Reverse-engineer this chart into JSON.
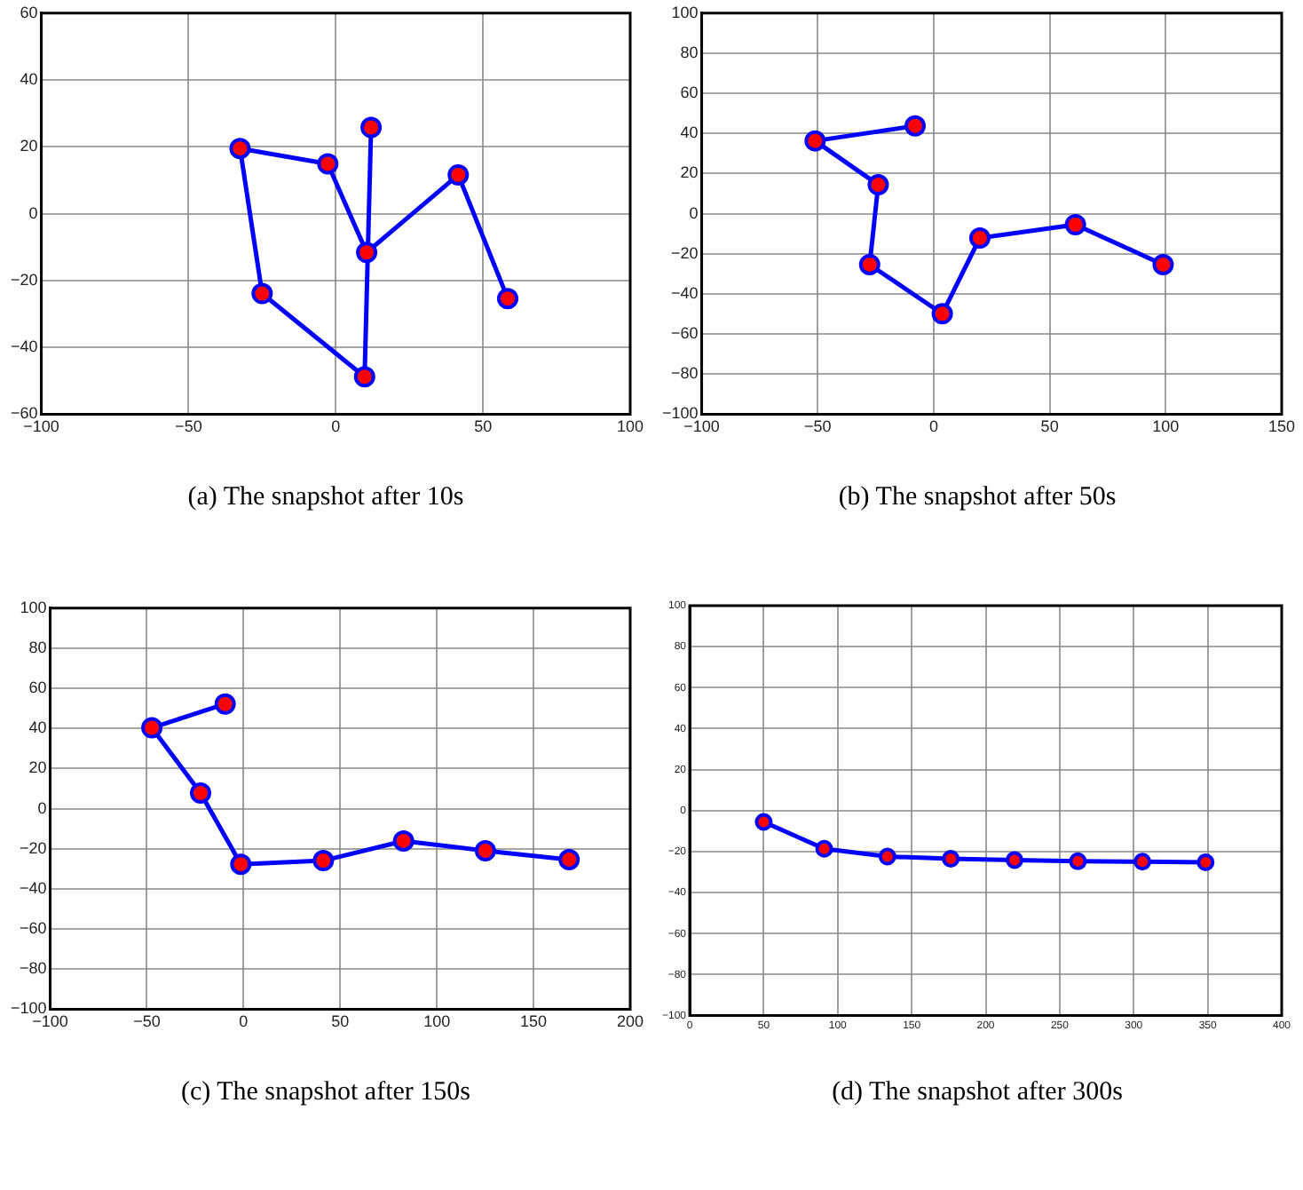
{
  "chart_data": [
    {
      "type": "line",
      "title": "(a) The snapshot after 10s",
      "x": [
        58.4,
        41.6,
        10.5,
        -2.7,
        -32.5,
        -25,
        9.8,
        12
      ],
      "series": [
        {
          "color": "#0000ff",
          "colors": [
            "#ff0000",
            "#ff0000",
            "#ff0000",
            "#ff0000",
            "#ff0000",
            "#ff0000",
            "#ff0000",
            "#ff0000"
          ],
          "values": [
            -25.4,
            11.6,
            -11.6,
            14.9,
            19.5,
            -23.9,
            -48.8,
            25.8
          ]
        }
      ],
      "xlim": [
        -100,
        100
      ],
      "xticks": [
        -100,
        -50,
        0,
        50,
        100
      ],
      "ylim": [
        -60,
        60
      ],
      "yticks": [
        -60,
        -40,
        -20,
        0,
        20,
        40,
        60
      ],
      "grid": true,
      "marker": "circle",
      "line_style": "solid"
    },
    {
      "type": "line",
      "title": "(b) The snapshot after 50s",
      "x": [
        -8,
        -51.1,
        -23.9,
        -27.6,
        3.7,
        19.9,
        61.1,
        98.9
      ],
      "series": [
        {
          "color": "#0000ff",
          "colors": [
            "#ff0000",
            "#ff0000",
            "#ff0000",
            "#ff0000",
            "#ff0000",
            "#ff0000",
            "#ff0000",
            "#ff0000"
          ],
          "values": [
            43.8,
            36.3,
            14.4,
            -25.4,
            -49.9,
            -12.1,
            -5.5,
            -25.4
          ]
        }
      ],
      "xlim": [
        -100,
        150
      ],
      "xticks": [
        -100,
        -50,
        0,
        50,
        100,
        150
      ],
      "ylim": [
        -100,
        100
      ],
      "yticks": [
        -100,
        -80,
        -60,
        -40,
        -20,
        0,
        20,
        40,
        60,
        80,
        100
      ],
      "grid": true,
      "marker": "circle",
      "line_style": "solid"
    },
    {
      "type": "line",
      "title": "(c) The snapshot after 150s",
      "x": [
        -9.5,
        -47.4,
        -22.2,
        -1.4,
        41.3,
        82.8,
        125.1,
        168.4
      ],
      "series": [
        {
          "color": "#0000ff",
          "colors": [
            "#ff0000",
            "#ff0000",
            "#ff0000",
            "#ff0000",
            "#ff0000",
            "#ff0000",
            "#ff0000",
            "#ff0000"
          ],
          "values": [
            52.2,
            40.3,
            7.8,
            -27.7,
            -25.9,
            -16.1,
            -21,
            -25.4
          ]
        }
      ],
      "xlim": [
        -100,
        200
      ],
      "xticks": [
        -100,
        -50,
        0,
        50,
        100,
        150,
        200
      ],
      "ylim": [
        -100,
        100
      ],
      "yticks": [
        -100,
        -80,
        -60,
        -40,
        -20,
        0,
        20,
        40,
        60,
        80,
        100
      ],
      "grid": true,
      "marker": "circle",
      "line_style": "solid"
    },
    {
      "type": "line",
      "title": "(d) The snapshot after 300s",
      "x": [
        50,
        90.9,
        133.6,
        176.4,
        219.5,
        262.3,
        305.9,
        348.6
      ],
      "series": [
        {
          "color": "#0000ff",
          "colors": [
            "#ff0000",
            "#ff0000",
            "#ff0000",
            "#ff0000",
            "#ff0000",
            "#ff0000",
            "#ff0000",
            "#ff0000"
          ],
          "values": [
            -5.5,
            -18.6,
            -22.4,
            -23.5,
            -24.1,
            -24.7,
            -24.9,
            -25.2
          ]
        }
      ],
      "xlim": [
        0,
        400
      ],
      "xticks": [
        0,
        50,
        100,
        150,
        200,
        250,
        300,
        350,
        400
      ],
      "ylim": [
        -100,
        100
      ],
      "yticks": [
        -100,
        -80,
        -60,
        -40,
        -20,
        0,
        20,
        40,
        60,
        80,
        100
      ],
      "grid": true,
      "marker": "circle",
      "line_style": "solid"
    }
  ]
}
